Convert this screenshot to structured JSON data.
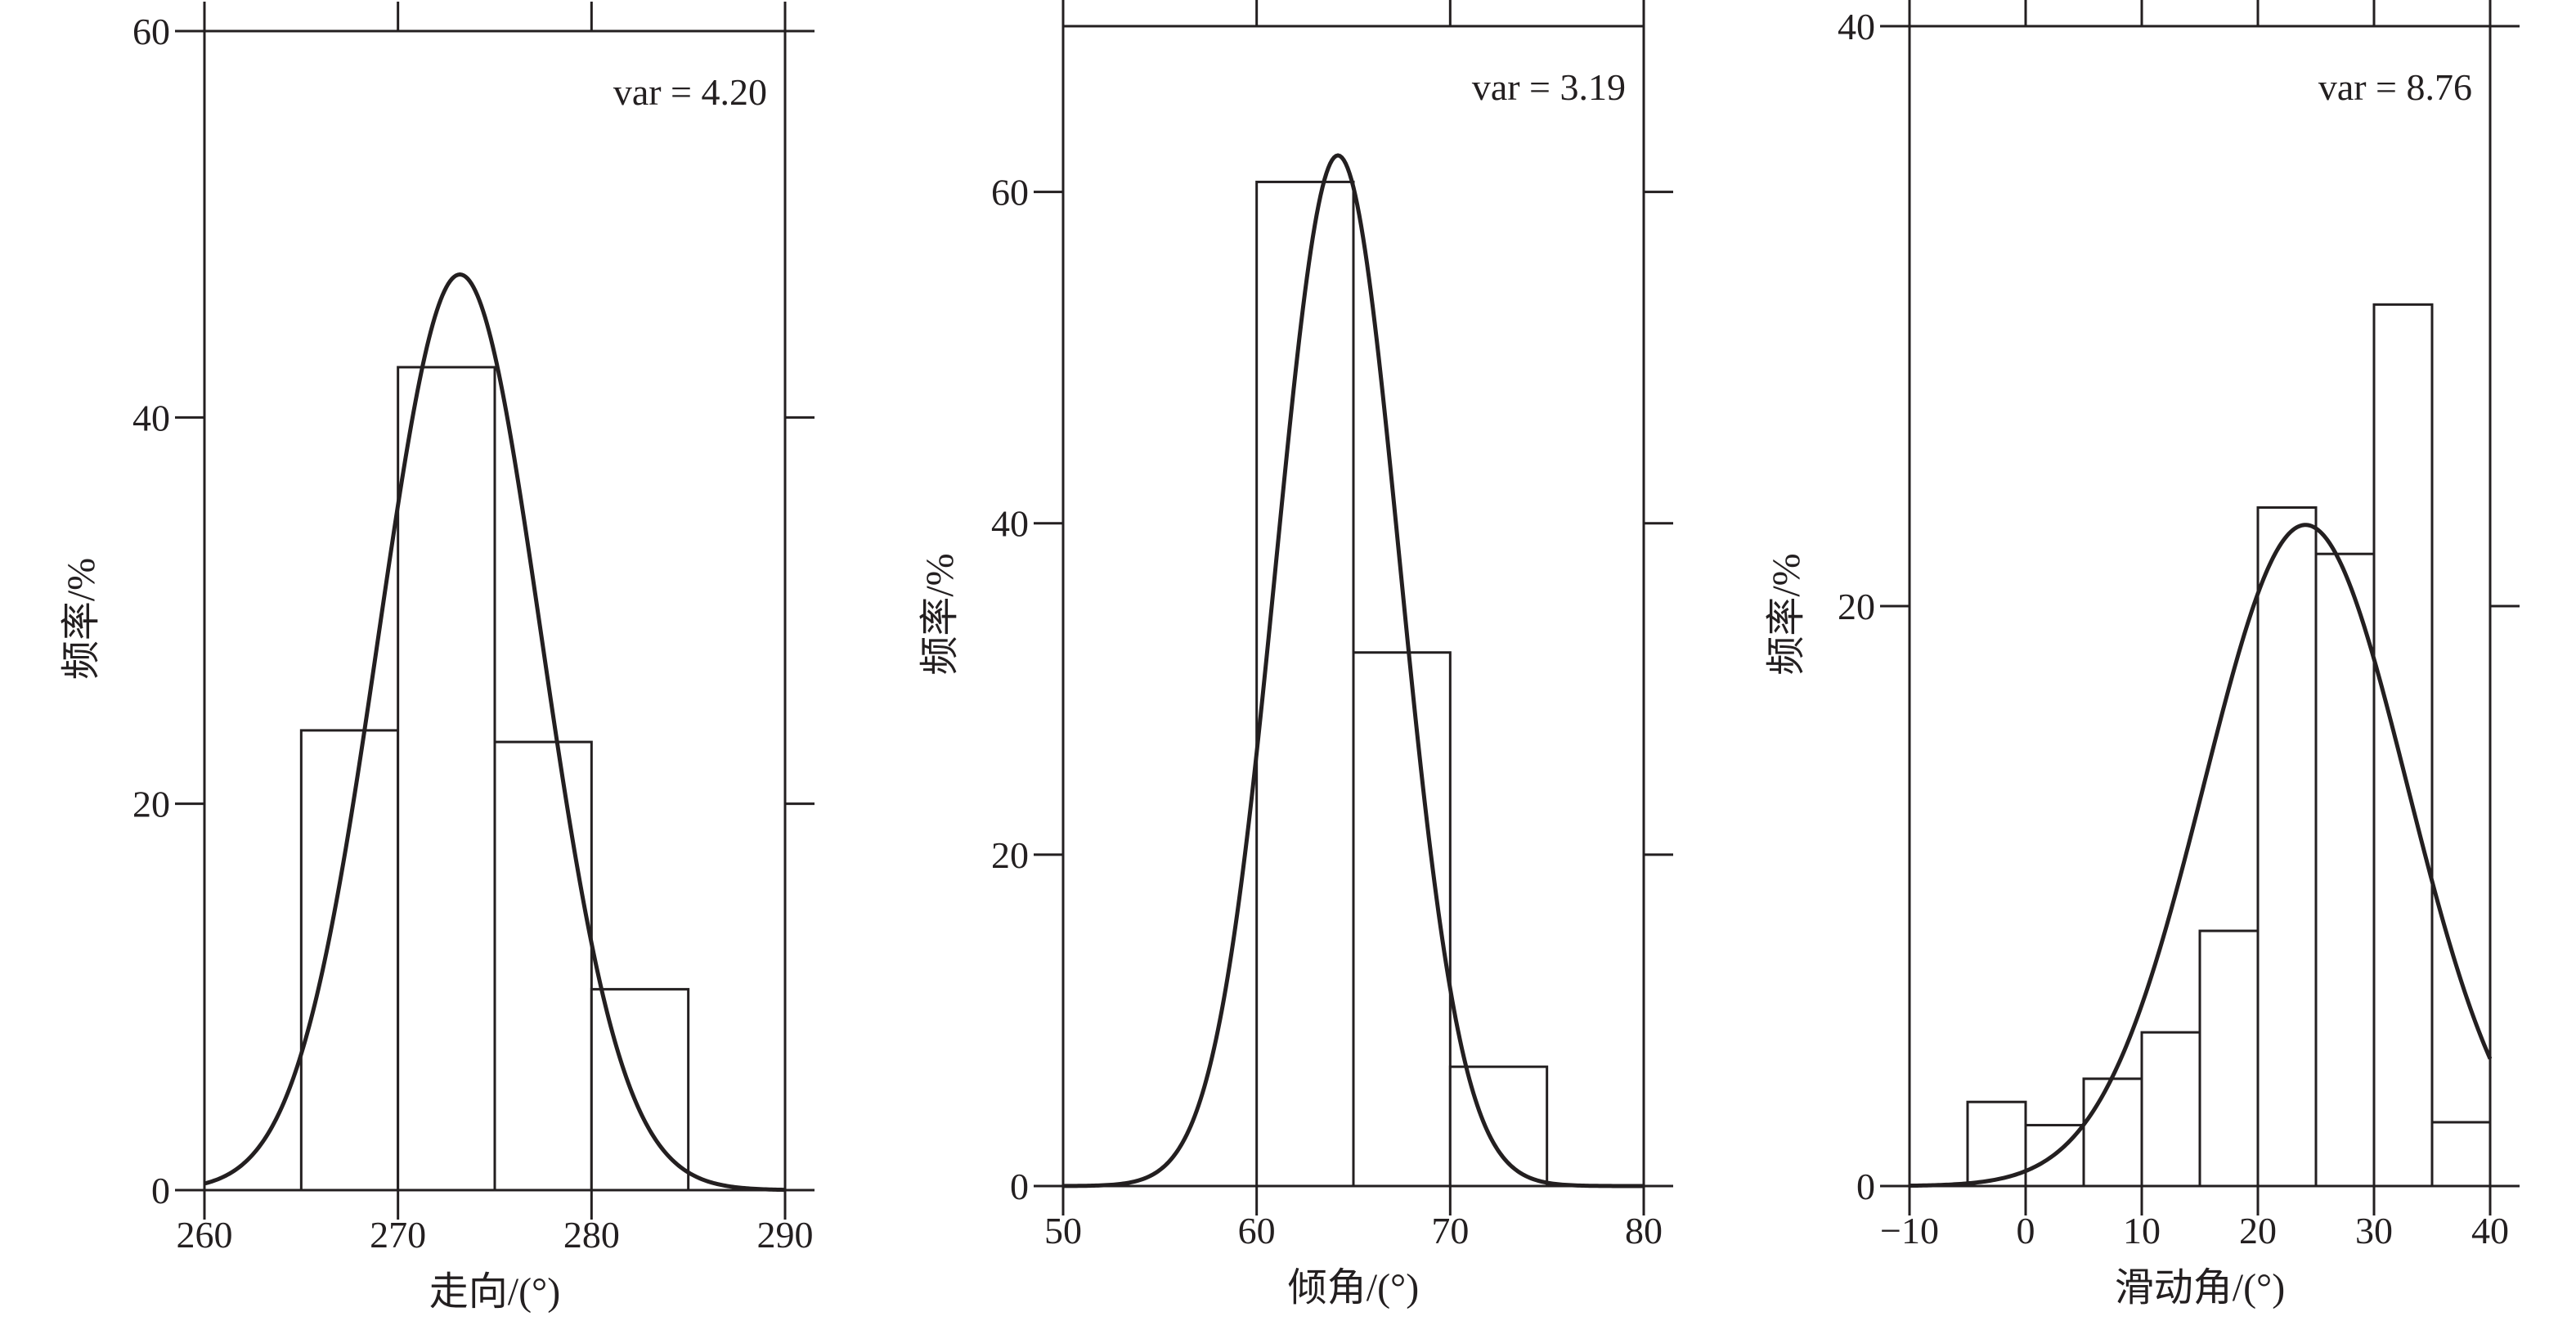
{
  "chart_data": [
    {
      "type": "bar",
      "subtype": "histogram-with-normal-fit",
      "annotation": "var = 4.20",
      "xlabel": "走向/(°)",
      "ylabel": "频率/%",
      "xlim": [
        260,
        290
      ],
      "ylim": [
        0,
        60
      ],
      "xticks": [
        260,
        270,
        280,
        290
      ],
      "yticks": [
        0,
        20,
        40,
        60
      ],
      "bins": [
        {
          "x0": 265,
          "x1": 270,
          "value": 23.8
        },
        {
          "x0": 270,
          "x1": 275,
          "value": 42.6
        },
        {
          "x0": 275,
          "x1": 280,
          "value": 23.2
        },
        {
          "x0": 280,
          "x1": 285,
          "value": 10.4
        }
      ],
      "fit": {
        "mean": 273.2,
        "sd": 4.2,
        "peak": 47.4
      }
    },
    {
      "type": "bar",
      "subtype": "histogram-with-normal-fit",
      "annotation": "var = 3.19",
      "xlabel": "倾角/(°)",
      "ylabel": "频率/%",
      "xlim": [
        50,
        80
      ],
      "ylim": [
        0,
        70
      ],
      "xticks": [
        50,
        60,
        70,
        80
      ],
      "yticks": [
        0,
        20,
        40,
        60
      ],
      "bins": [
        {
          "x0": 60,
          "x1": 65,
          "value": 60.6
        },
        {
          "x0": 65,
          "x1": 70,
          "value": 32.2
        },
        {
          "x0": 70,
          "x1": 75,
          "value": 7.2
        }
      ],
      "fit": {
        "mean": 64.2,
        "sd": 3.19,
        "peak": 62.2
      }
    },
    {
      "type": "bar",
      "subtype": "histogram-with-normal-fit",
      "annotation": "var = 8.76",
      "xlabel": "滑动角/(°)",
      "ylabel": "频率/%",
      "xlim": [
        -10,
        40
      ],
      "ylim": [
        0,
        40
      ],
      "xticks": [
        -10,
        0,
        10,
        20,
        30,
        40
      ],
      "xtick_labels": [
        "−10",
        "0",
        "10",
        "20",
        "30",
        "40"
      ],
      "yticks": [
        0,
        20,
        40
      ],
      "bins": [
        {
          "x0": -5,
          "x1": 0,
          "value": 2.9
        },
        {
          "x0": 0,
          "x1": 5,
          "value": 2.1
        },
        {
          "x0": 5,
          "x1": 10,
          "value": 3.7
        },
        {
          "x0": 10,
          "x1": 15,
          "value": 5.3
        },
        {
          "x0": 15,
          "x1": 20,
          "value": 8.8
        },
        {
          "x0": 20,
          "x1": 25,
          "value": 23.4
        },
        {
          "x0": 25,
          "x1": 30,
          "value": 21.8
        },
        {
          "x0": 30,
          "x1": 35,
          "value": 30.4
        },
        {
          "x0": 35,
          "x1": 40,
          "value": 2.2
        }
      ],
      "fit": {
        "mean": 24.1,
        "sd": 8.76,
        "peak": 22.8
      }
    }
  ]
}
